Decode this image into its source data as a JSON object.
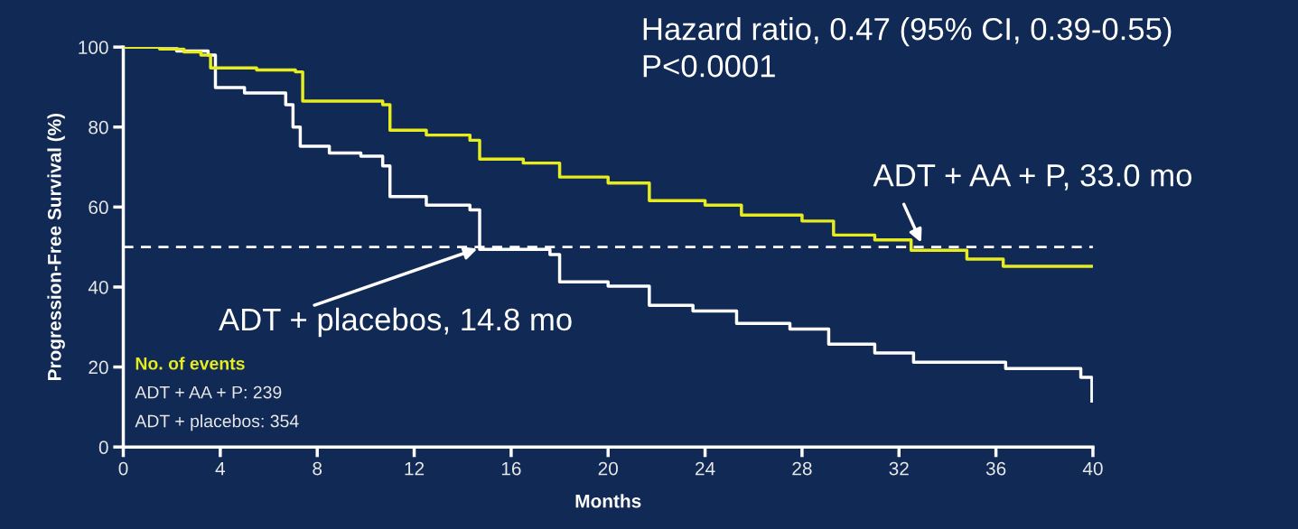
{
  "chart_data": {
    "type": "step",
    "title": "Hazard ratio, 0.47 (95% CI, 0.39-0.55)",
    "subtitle": "P<0.0001",
    "xlabel": "Months",
    "ylabel": "Progression-Free Survival (%)",
    "xlim": [
      0,
      40
    ],
    "ylim": [
      0,
      100
    ],
    "xticks": [
      0,
      4,
      8,
      12,
      16,
      20,
      24,
      28,
      32,
      36,
      40
    ],
    "yticks": [
      0,
      20,
      40,
      60,
      80,
      100
    ],
    "grid": false,
    "legend": false,
    "series": [
      {
        "color": "#e6ec1e",
        "x": [
          0,
          1.5,
          2.5,
          3.2,
          3.6,
          5.5,
          7.1,
          7.4,
          10.7,
          11.0,
          12.5,
          14.3,
          14.7,
          16.5,
          18.0,
          20.0,
          21.7,
          24.0,
          25.5,
          28.0,
          29.3,
          31.0,
          32.5,
          34.8,
          36.3,
          40.0
        ],
        "values": [
          100,
          99.5,
          98.8,
          98,
          94.8,
          94.3,
          93.8,
          86.5,
          85.6,
          79.2,
          78,
          76.7,
          72,
          71,
          67.5,
          66,
          61.6,
          60.5,
          58,
          56.5,
          53,
          51.8,
          49.2,
          47,
          45.2,
          45.2
        ]
      },
      {
        "color": "#ffffff",
        "x": [
          0,
          2.2,
          3.5,
          3.8,
          5.0,
          6.7,
          7.0,
          7.3,
          8.5,
          9.8,
          10.7,
          11.0,
          12.5,
          14.3,
          14.7,
          17.6,
          18.0,
          20.0,
          21.7,
          23.5,
          25.3,
          27.5,
          29.1,
          31.0,
          32.6,
          36.4,
          39.5,
          39.96
        ],
        "values": [
          100,
          99,
          98,
          89.9,
          88.5,
          85.6,
          80,
          75.2,
          73.5,
          72.7,
          70.3,
          62.6,
          60.5,
          59.3,
          49.4,
          48.1,
          41.3,
          40.2,
          35.4,
          34,
          30.9,
          29.5,
          25.7,
          23.5,
          21.2,
          19.6,
          17.4,
          11.5
        ]
      }
    ],
    "ref_lines": [
      {
        "axis": "y",
        "value": 50,
        "color": "#ffffff",
        "line_style": "dashed"
      }
    ],
    "annotations": [
      {
        "text": "ADT + AA + P, 33.0 mo",
        "x": 33.0,
        "y": 50
      },
      {
        "text": "ADT + placebos, 14.8 mo",
        "x": 14.8,
        "y": 50
      },
      "No. of events",
      "ADT + AA + P: 239",
      "ADT + placebos: 354"
    ]
  }
}
